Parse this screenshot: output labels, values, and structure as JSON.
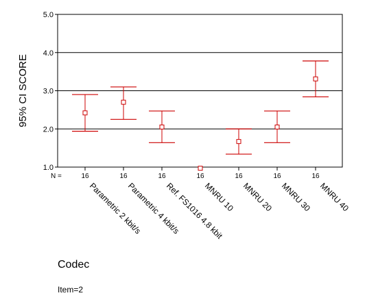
{
  "chart_data": {
    "type": "errorbar",
    "xlabel": "Codec",
    "ylabel": "95% CI SCORE",
    "ylim": [
      1.0,
      5.0
    ],
    "yticks": [
      "1.0",
      "2.0",
      "3.0",
      "4.0",
      "5.0"
    ],
    "grid": "horizontal",
    "n_label": "N =",
    "categories": [
      "Parametric 2 kbit/s",
      "Parametric 4 kbit/s",
      "Ref. FS1016 4.8 kbit",
      "MNRU 10",
      "MNRU 20",
      "MNRU 30",
      "MNRU 40"
    ],
    "n": [
      "16",
      "16",
      "16",
      "16",
      "16",
      "16",
      "16"
    ],
    "mean": [
      2.42,
      2.7,
      2.05,
      0.97,
      1.67,
      2.05,
      3.31
    ],
    "lower": [
      1.94,
      2.25,
      1.64,
      0.95,
      1.34,
      1.64,
      2.84
    ],
    "upper": [
      2.9,
      3.1,
      2.47,
      0.99,
      2.0,
      2.47,
      3.78
    ],
    "colors": {
      "errorbar": "#cc0000",
      "grid": "#000000",
      "axis": "#000000"
    }
  },
  "footnote": "Item=2"
}
